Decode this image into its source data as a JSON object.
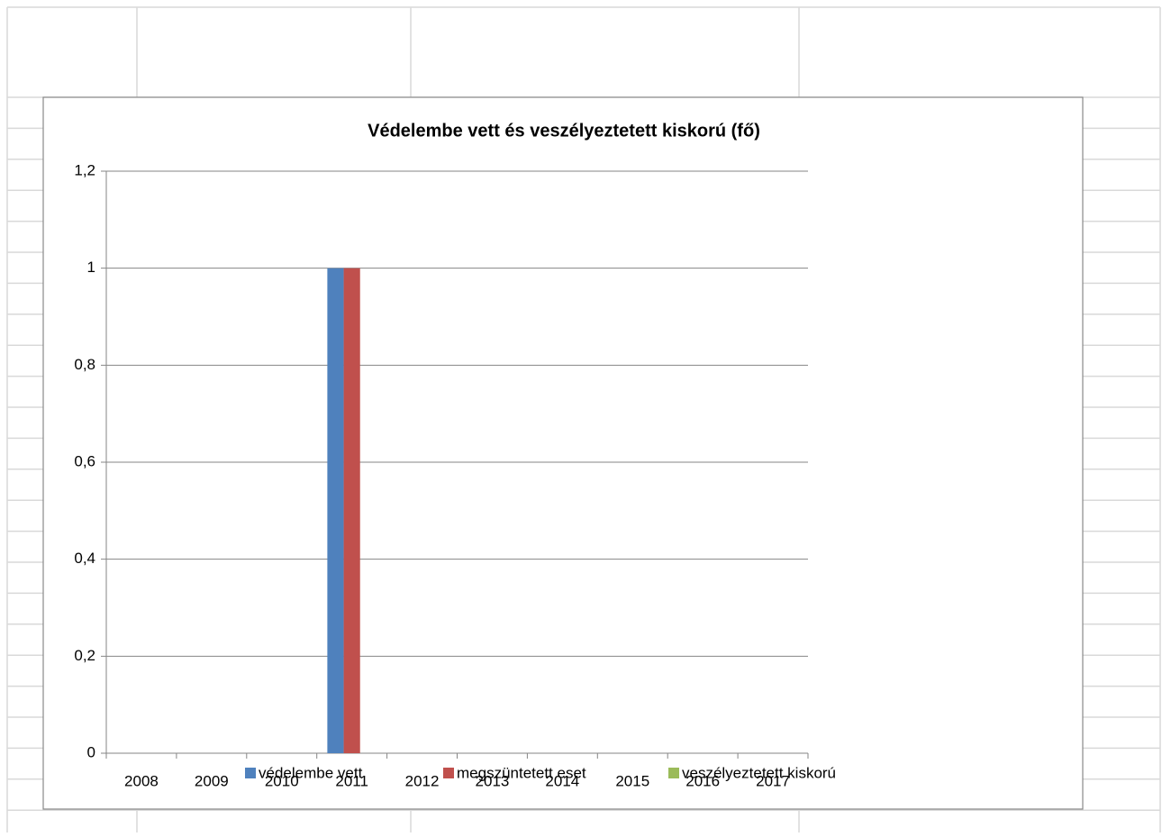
{
  "chart_data": {
    "type": "bar",
    "title": "Védelembe vett és veszélyeztetett kiskorú (fő)",
    "categories": [
      "2008",
      "2009",
      "2010",
      "2011",
      "2012",
      "2013",
      "2014",
      "2015",
      "2016",
      "2017"
    ],
    "series": [
      {
        "name": "védelembe vett",
        "color": "#4f81bd",
        "values": [
          0,
          0,
          0,
          1,
          0,
          0,
          0,
          0,
          0,
          0
        ]
      },
      {
        "name": "megszüntetett eset",
        "color": "#c0504d",
        "values": [
          0,
          0,
          0,
          1,
          0,
          0,
          0,
          0,
          0,
          0
        ]
      },
      {
        "name": "veszélyeztetett kiskorú",
        "color": "#9bbb59",
        "values": [
          0,
          0,
          0,
          0,
          0,
          0,
          0,
          0,
          0,
          0
        ]
      }
    ],
    "ylim": [
      0,
      1.2
    ],
    "yticks": [
      0,
      {
        "value": 0.2,
        "label": "0,2"
      },
      {
        "value": 0.4,
        "label": "0,4"
      },
      {
        "value": 0.6,
        "label": "0,6"
      },
      {
        "value": 0.8,
        "label": "0,8"
      },
      1,
      {
        "value": 1.2,
        "label": "1,2"
      }
    ],
    "grid": true,
    "legend": "bottom"
  }
}
